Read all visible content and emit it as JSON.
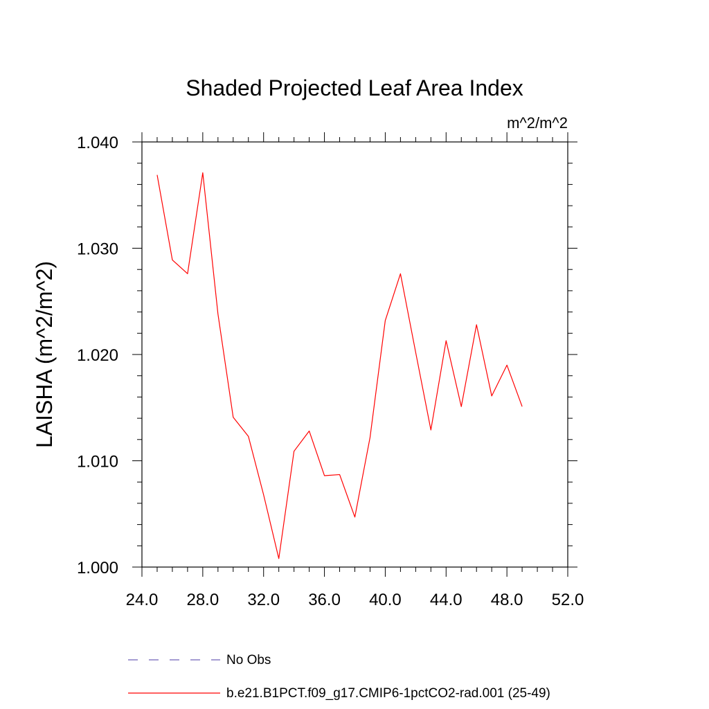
{
  "chart_data": {
    "type": "line",
    "title": "Shaded Projected Leaf Area Index",
    "units": "m^2/m^2",
    "ylabel": "LAISHA  (m^2/m^2)",
    "xlabel": "",
    "xlim": [
      24,
      52
    ],
    "ylim": [
      1.0,
      1.04
    ],
    "x_ticks": [
      24,
      28,
      32,
      36,
      40,
      44,
      48,
      52
    ],
    "x_tick_labels": [
      "24.0",
      "28.0",
      "32.0",
      "36.0",
      "40.0",
      "44.0",
      "48.0",
      "52.0"
    ],
    "y_ticks": [
      1.0,
      1.01,
      1.02,
      1.03,
      1.04
    ],
    "y_tick_labels": [
      "1.000",
      "1.010",
      "1.020",
      "1.030",
      "1.040"
    ],
    "grid": false,
    "legend_position": "bottom",
    "series": [
      {
        "name": "b.e21.B1PCT.f09_g17.CMIP6-1pctCO2-rad.001 (25-49)",
        "color": "#ff0000",
        "line_style": "solid",
        "x": [
          25,
          26,
          27,
          28,
          29,
          30,
          31,
          32,
          33,
          34,
          35,
          36,
          37,
          38,
          39,
          40,
          41,
          42,
          43,
          44,
          45,
          46,
          47,
          48,
          49
        ],
        "y": [
          1.0369,
          1.0289,
          1.0276,
          1.0371,
          1.0238,
          1.0141,
          1.0123,
          1.0068,
          1.0008,
          1.0109,
          1.0128,
          1.0086,
          1.0087,
          1.0047,
          1.0122,
          1.0232,
          1.0276,
          1.0202,
          1.0129,
          1.0213,
          1.0151,
          1.0228,
          1.0161,
          1.019,
          1.0151
        ]
      }
    ],
    "legend": [
      {
        "label": "No Obs",
        "color": "#6f62b8",
        "line_style": "dashed"
      },
      {
        "label": "b.e21.B1PCT.f09_g17.CMIP6-1pctCO2-rad.001 (25-49)",
        "color": "#ff0000",
        "line_style": "solid"
      }
    ]
  }
}
